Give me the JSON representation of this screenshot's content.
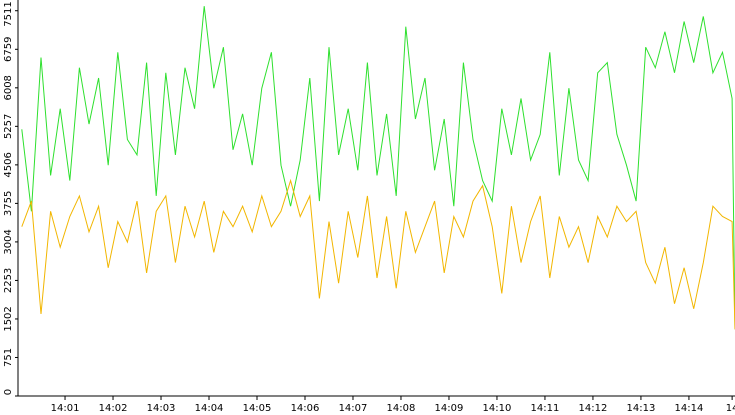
{
  "chart_data": {
    "type": "line",
    "x": [
      0.1,
      0.3,
      0.5,
      0.7,
      0.9,
      1.1,
      1.3,
      1.5,
      1.7,
      1.9,
      2.1,
      2.3,
      2.5,
      2.7,
      2.9,
      3.1,
      3.3,
      3.5,
      3.7,
      3.9,
      4.1,
      4.3,
      4.5,
      4.7,
      4.9,
      5.1,
      5.3,
      5.5,
      5.7,
      5.9,
      6.1,
      6.3,
      6.5,
      6.7,
      6.9,
      7.1,
      7.3,
      7.5,
      7.7,
      7.9,
      8.1,
      8.3,
      8.5,
      8.7,
      8.9,
      9.1,
      9.3,
      9.5,
      9.7,
      9.9,
      10.1,
      10.3,
      10.5,
      10.7,
      10.9,
      11.1,
      11.3,
      11.5,
      11.7,
      11.9,
      12.1,
      12.3,
      12.5,
      12.7,
      12.9,
      13.1,
      13.3,
      13.5,
      13.7,
      13.9,
      14.1,
      14.3,
      14.5,
      14.7,
      14.9,
      14.96
    ],
    "series": [
      {
        "color": "#2ee02e",
        "values": [
          5200,
          3600,
          6600,
          4300,
          5600,
          4200,
          6400,
          5300,
          6200,
          4500,
          6700,
          5000,
          4700,
          6500,
          3900,
          6300,
          4700,
          6400,
          5600,
          7600,
          6000,
          6800,
          4800,
          5500,
          4500,
          6000,
          6700,
          4500,
          3700,
          4600,
          6200,
          3800,
          6800,
          4700,
          5600,
          4400,
          6500,
          4300,
          5500,
          3900,
          7200,
          5400,
          6200,
          4400,
          5400,
          3700,
          6500,
          5000,
          4200,
          3800,
          5600,
          4700,
          5800,
          4600,
          5100,
          6700,
          4300,
          6000,
          4600,
          4200,
          6300,
          6500,
          5100,
          4500,
          3800,
          6800,
          6400,
          7100,
          6300,
          7300,
          6500,
          7400,
          6300,
          6700,
          5800,
          1300
        ]
      },
      {
        "color": "#f2b600",
        "values": [
          3300,
          3800,
          1600,
          3600,
          2900,
          3500,
          3900,
          3200,
          3700,
          2500,
          3400,
          3000,
          3800,
          2400,
          3600,
          3900,
          2600,
          3700,
          3100,
          3800,
          2800,
          3600,
          3300,
          3700,
          3200,
          3900,
          3300,
          3600,
          4200,
          3500,
          3900,
          1900,
          3400,
          2200,
          3600,
          2700,
          3900,
          2300,
          3500,
          2100,
          3600,
          2800,
          3300,
          3800,
          2400,
          3500,
          3100,
          3800,
          4100,
          3300,
          2000,
          3700,
          2600,
          3400,
          3900,
          2300,
          3500,
          2900,
          3300,
          2600,
          3500,
          3100,
          3700,
          3400,
          3600,
          2600,
          2200,
          2900,
          1800,
          2500,
          1700,
          2600,
          3700,
          3500,
          3400,
          1300
        ]
      }
    ],
    "xlim": [
      0.02,
      14.96
    ],
    "xticks": [
      {
        "value": 1,
        "label": "14:01"
      },
      {
        "value": 2,
        "label": "14:02"
      },
      {
        "value": 3,
        "label": "14:03"
      },
      {
        "value": 4,
        "label": "14:04"
      },
      {
        "value": 5,
        "label": "14:05"
      },
      {
        "value": 6,
        "label": "14:06"
      },
      {
        "value": 7,
        "label": "14:07"
      },
      {
        "value": 8,
        "label": "14:08"
      },
      {
        "value": 9,
        "label": "14:09"
      },
      {
        "value": 10,
        "label": "14:10"
      },
      {
        "value": 11,
        "label": "14:11"
      },
      {
        "value": 12,
        "label": "14:12"
      },
      {
        "value": 13,
        "label": "14:13"
      },
      {
        "value": 14,
        "label": "14:14"
      },
      {
        "value": 14.9,
        "label": "14"
      }
    ],
    "ylim": [
      0,
      7720
    ],
    "yticks": [
      0,
      751,
      1502,
      2253,
      3004,
      3755,
      4506,
      5257,
      6008,
      6759,
      7511
    ]
  }
}
